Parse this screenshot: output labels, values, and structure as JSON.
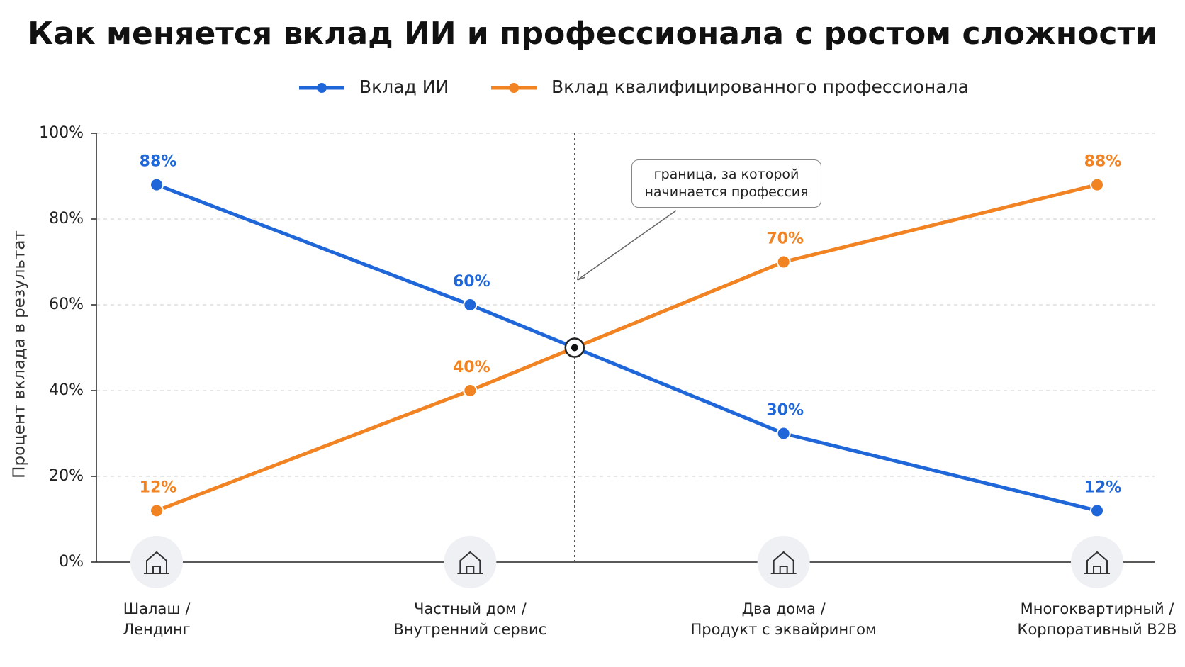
{
  "chart_data": {
    "type": "line",
    "title": "Как меняется вклад ИИ и профессионала с ростом сложности",
    "y_label": "Процент вклада в результат",
    "categories": [
      "Шалаш /\nЛендинг",
      "Частный дом /\nВнутренний сервис",
      "Два дома /\nПродукт с эквайрингом",
      "Многоквартирный /\nКорпоративный B2B"
    ],
    "series": [
      {
        "name": "Вклад ИИ",
        "color": "#1f66d9",
        "values": [
          88,
          60,
          30,
          12
        ],
        "value_labels": [
          "88%",
          "60%",
          "30%",
          "12%"
        ]
      },
      {
        "name": "Вклад квалифицированного профессионала",
        "color": "#f28322",
        "values": [
          12,
          40,
          70,
          88
        ],
        "value_labels": [
          "12%",
          "40%",
          "70%",
          "88%"
        ]
      }
    ],
    "annotation": "граница, за которой\nначинается профессия",
    "ylim": [
      0,
      100
    ],
    "yticks": [
      {
        "value": 0,
        "label": "0%"
      },
      {
        "value": 20,
        "label": "20%"
      },
      {
        "value": 40,
        "label": "40%"
      },
      {
        "value": 60,
        "label": "60%"
      },
      {
        "value": 80,
        "label": "80%"
      },
      {
        "value": 100,
        "label": "100%"
      }
    ],
    "grid": true
  }
}
